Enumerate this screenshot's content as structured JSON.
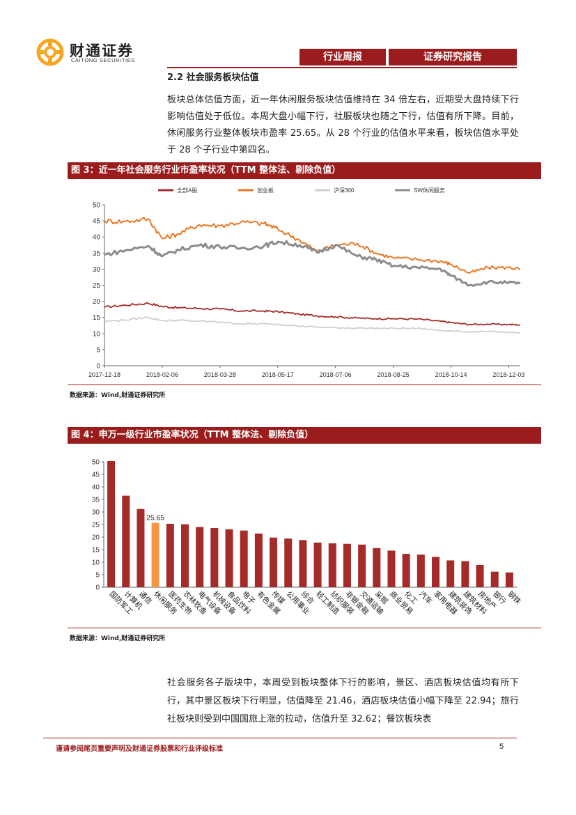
{
  "header": {
    "logo_cn": "财通证券",
    "logo_en": "CAITONG SECURITIES",
    "tag1": "行业周报",
    "tag2": "证券研究报告"
  },
  "section": {
    "title": "2.2  社会服务板块估值",
    "paragraph": "板块总体估值方面，近一年休闲服务板块估值维持在 34 倍左右，近期受大盘持续下行影响估值处于低位。本周大盘小幅下行，社服板块也随之下行，估值有所下降。目前，休闲服务行业整体板块市盈率 25.65。从 28 个行业的估值水平来看，板块估值水平处于 28 个子行业中第四名。"
  },
  "figure3": {
    "title": "图 3：近一年社会服务行业市盈率状况（TTM 整体法、剔除负值）",
    "source": "数据来源：Wind,财通证券研究所"
  },
  "figure4": {
    "title": "图 4：申万一级行业市盈率状况（TTM 整体法、剔除负值）",
    "source": "数据来源：Wind,财通证券研究所"
  },
  "body2": {
    "paragraph": "社会服务各子版块中，本周受到板块整体下行的影响，景区、酒店板块估值均有所下行，其中景区板块下行明显，估值降至 21.46，酒店板块估值小幅下降至 22.94；旅行社板块则受到中国国旅上涨的拉动，估值升至 32.62；餐饮板块表"
  },
  "footer": {
    "disclaimer": "谨请参阅尾页重要声明及财通证券股票和行业评级标准",
    "page": "5"
  },
  "colors": {
    "brand": "#9b1c1c",
    "orange": "#e87722",
    "gray": "#8c8c8c",
    "lightgray": "#cfcfcf",
    "bar": "#a52a2a",
    "highlight": "#f79646"
  },
  "chart_data": [
    {
      "type": "line",
      "ylim": [
        0,
        50
      ],
      "yticks": [
        0,
        5,
        10,
        15,
        20,
        25,
        30,
        35,
        40,
        45,
        50
      ],
      "xticks": [
        "2017-12-18",
        "2018-02-06",
        "2018-03-28",
        "2018-05-17",
        "2018-07-06",
        "2018-08-25",
        "2018-10-14",
        "2018-12-03"
      ],
      "legend_position": "top",
      "grid": false,
      "x": [
        "2017-12-18",
        "2018-01-05",
        "2018-01-25",
        "2018-02-06",
        "2018-02-20",
        "2018-03-10",
        "2018-03-28",
        "2018-04-15",
        "2018-05-05",
        "2018-05-17",
        "2018-06-05",
        "2018-06-20",
        "2018-07-06",
        "2018-07-25",
        "2018-08-10",
        "2018-08-25",
        "2018-09-15",
        "2018-10-05",
        "2018-10-14",
        "2018-10-30",
        "2018-11-15",
        "2018-12-03",
        "2018-12-13"
      ],
      "series": [
        {
          "name": "全部A股",
          "color": "#a52a2a",
          "values": [
            18.2,
            18.8,
            19.4,
            18.4,
            18.0,
            17.8,
            17.6,
            17.0,
            17.0,
            16.8,
            16.0,
            15.5,
            15.2,
            14.8,
            14.6,
            14.6,
            14.5,
            13.8,
            13.4,
            12.8,
            12.9,
            12.8,
            12.7
          ]
        },
        {
          "name": "创业板",
          "color": "#e87722",
          "values": [
            45.0,
            44.8,
            45.6,
            39.5,
            41.0,
            43.8,
            43.5,
            44.6,
            44.2,
            42.5,
            39.0,
            35.5,
            37.5,
            38.0,
            35.0,
            33.5,
            33.0,
            32.5,
            31.5,
            28.8,
            30.5,
            30.5,
            30.0
          ]
        },
        {
          "name": "沪深300",
          "color": "#cfcfcf",
          "values": [
            13.8,
            14.2,
            15.0,
            14.0,
            14.1,
            13.8,
            13.6,
            13.0,
            13.0,
            12.9,
            12.3,
            12.0,
            11.8,
            11.7,
            11.6,
            11.6,
            11.6,
            11.0,
            10.8,
            10.5,
            10.6,
            10.4,
            10.2
          ]
        },
        {
          "name": "SW休闲服务",
          "color": "#8c8c8c",
          "values": [
            34.5,
            35.8,
            37.2,
            34.0,
            36.0,
            37.5,
            37.0,
            36.5,
            37.2,
            38.5,
            37.5,
            35.2,
            37.5,
            34.0,
            33.0,
            31.0,
            30.5,
            30.0,
            28.0,
            25.0,
            26.0,
            25.8,
            25.65
          ]
        }
      ]
    },
    {
      "type": "bar",
      "ylim": [
        0,
        50
      ],
      "yticks": [
        0,
        5,
        10,
        15,
        20,
        25,
        30,
        35,
        40,
        45,
        50
      ],
      "categories": [
        "国防军工",
        "计算机",
        "通信",
        "休闲服务",
        "医药生物",
        "农林牧渔",
        "电气设备",
        "机械设备",
        "食品饮料",
        "电子",
        "有色金属",
        "传媒",
        "公用事业",
        "综合",
        "轻工制造",
        "纺织服装",
        "非银金融",
        "交通运输",
        "采掘",
        "商业贸易",
        "化工",
        "汽车",
        "家用电器",
        "建筑装饰",
        "建筑材料",
        "房地产",
        "银行",
        "钢铁"
      ],
      "values": [
        50.3,
        36.5,
        31.2,
        25.65,
        25.3,
        25.1,
        24.0,
        23.6,
        23.1,
        22.6,
        21.4,
        19.8,
        19.4,
        18.8,
        17.8,
        17.5,
        17.3,
        17.0,
        15.6,
        14.6,
        13.3,
        13.0,
        12.1,
        10.7,
        10.4,
        8.9,
        6.2,
        5.9
      ],
      "highlight": "休闲服务",
      "data_labels": [
        {
          "category": "休闲服务",
          "text": "25.65"
        }
      ]
    }
  ]
}
